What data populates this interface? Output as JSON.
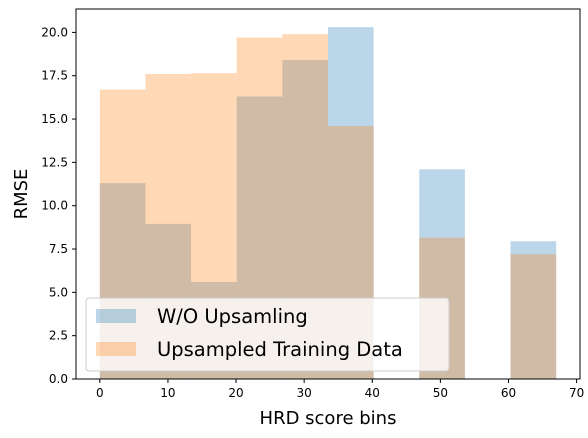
{
  "chart_data": {
    "type": "bar",
    "title": "",
    "xlabel": "HRD score bins",
    "ylabel": "RMSE",
    "xlim": [
      -3.5,
      70.5
    ],
    "ylim": [
      0,
      21.35
    ],
    "xticks": [
      0,
      10,
      20,
      30,
      40,
      50,
      60,
      70
    ],
    "yticks": [
      0.0,
      2.5,
      5.0,
      7.5,
      10.0,
      12.5,
      15.0,
      17.5,
      20.0
    ],
    "xtick_labels": [
      "0",
      "10",
      "20",
      "30",
      "40",
      "50",
      "60",
      "70"
    ],
    "ytick_labels": [
      "0.0",
      "2.5",
      "5.0",
      "7.5",
      "10.0",
      "12.5",
      "15.0",
      "17.5",
      "20.0"
    ],
    "bin_edges": [
      [
        0,
        6.7
      ],
      [
        6.7,
        13.4
      ],
      [
        13.4,
        20.1
      ],
      [
        20.1,
        26.8
      ],
      [
        26.8,
        33.5
      ],
      [
        33.5,
        40.2
      ],
      [
        46.9,
        53.6
      ],
      [
        60.3,
        67.0
      ]
    ],
    "series": [
      {
        "name": "W/O Upsamling",
        "color": "#1f77b4",
        "opacity": 0.3,
        "values": [
          11.3,
          8.95,
          5.6,
          16.3,
          18.4,
          20.3,
          12.1,
          7.95
        ]
      },
      {
        "name": "Upsampled Training Data",
        "color": "#ff7f0e",
        "opacity": 0.3,
        "values": [
          16.7,
          17.6,
          17.65,
          19.7,
          19.9,
          14.6,
          8.15,
          7.2
        ]
      }
    ],
    "legend_position": "lower-left",
    "grid": false
  }
}
